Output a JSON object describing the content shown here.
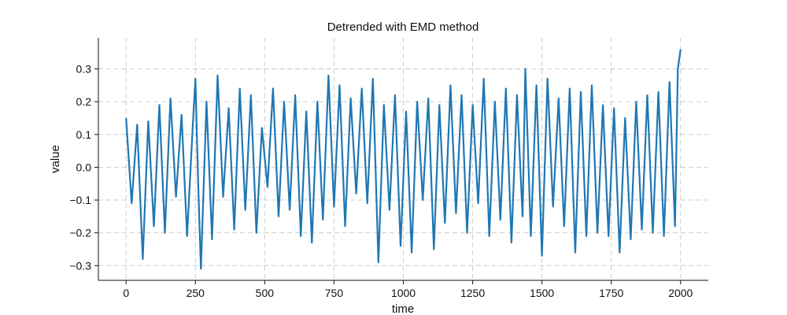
{
  "chart_data": {
    "type": "line",
    "title": "Detrended with EMD method",
    "xlabel": "time",
    "ylabel": "value",
    "xlim": [
      -100,
      2100
    ],
    "ylim": [
      -0.345,
      0.395
    ],
    "xticks": [
      0,
      250,
      500,
      750,
      1000,
      1250,
      1500,
      1750,
      2000
    ],
    "xtick_labels": [
      "0",
      "250",
      "500",
      "750",
      "1000",
      "1250",
      "1500",
      "1750",
      "2000"
    ],
    "yticks": [
      -0.3,
      -0.2,
      -0.1,
      0.0,
      0.1,
      0.2,
      0.3
    ],
    "ytick_labels": [
      "−0.3",
      "−0.2",
      "−0.1",
      "0.0",
      "0.1",
      "0.2",
      "0.3"
    ],
    "grid": true,
    "series": [
      {
        "color": "#1f77b4",
        "x": [
          0,
          20,
          40,
          60,
          80,
          100,
          120,
          140,
          160,
          180,
          200,
          220,
          240,
          250,
          260,
          270,
          290,
          310,
          330,
          350,
          370,
          390,
          410,
          430,
          450,
          470,
          490,
          510,
          530,
          550,
          570,
          590,
          610,
          630,
          650,
          670,
          690,
          710,
          730,
          750,
          770,
          790,
          810,
          830,
          850,
          870,
          890,
          910,
          930,
          950,
          970,
          990,
          1010,
          1030,
          1050,
          1070,
          1090,
          1110,
          1130,
          1150,
          1170,
          1190,
          1210,
          1230,
          1250,
          1270,
          1290,
          1310,
          1330,
          1350,
          1370,
          1390,
          1410,
          1430,
          1440,
          1460,
          1480,
          1500,
          1520,
          1540,
          1560,
          1580,
          1600,
          1620,
          1640,
          1660,
          1680,
          1700,
          1720,
          1740,
          1760,
          1780,
          1800,
          1820,
          1840,
          1860,
          1880,
          1900,
          1920,
          1940,
          1960,
          1980,
          1990,
          2000
        ],
        "y": [
          0.15,
          -0.11,
          0.13,
          -0.28,
          0.14,
          -0.18,
          0.19,
          -0.2,
          0.21,
          -0.09,
          0.16,
          -0.21,
          0.12,
          0.27,
          -0.05,
          -0.31,
          0.2,
          -0.22,
          0.28,
          -0.09,
          0.18,
          -0.19,
          0.24,
          -0.13,
          0.22,
          -0.2,
          0.12,
          -0.06,
          0.24,
          -0.15,
          0.2,
          -0.13,
          0.22,
          -0.21,
          0.17,
          -0.23,
          0.2,
          -0.16,
          0.28,
          -0.12,
          0.25,
          -0.18,
          0.21,
          -0.08,
          0.24,
          -0.11,
          0.27,
          -0.29,
          0.19,
          -0.13,
          0.22,
          -0.24,
          0.17,
          -0.26,
          0.2,
          -0.1,
          0.21,
          -0.25,
          0.19,
          -0.17,
          0.25,
          -0.14,
          0.22,
          -0.2,
          0.19,
          -0.11,
          0.27,
          -0.21,
          0.2,
          -0.16,
          0.24,
          -0.23,
          0.22,
          -0.15,
          0.3,
          -0.21,
          0.25,
          -0.27,
          0.27,
          -0.12,
          0.21,
          -0.18,
          0.24,
          -0.26,
          0.23,
          -0.21,
          0.25,
          -0.2,
          0.19,
          -0.21,
          0.18,
          -0.26,
          0.15,
          -0.22,
          0.2,
          -0.19,
          0.22,
          -0.2,
          0.23,
          -0.21,
          0.26,
          -0.18,
          0.3,
          0.36
        ]
      }
    ]
  }
}
